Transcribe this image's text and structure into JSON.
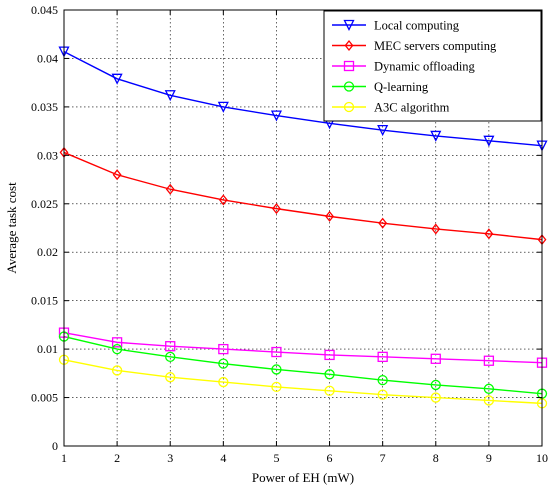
{
  "chart_data": {
    "type": "line",
    "title": "",
    "xlabel": "Power of EH (mW)",
    "ylabel": "Average task cost",
    "xlim": [
      1,
      10
    ],
    "ylim": [
      0,
      0.045
    ],
    "x": [
      1,
      2,
      3,
      4,
      5,
      6,
      7,
      8,
      9,
      10
    ],
    "x_ticks": [
      "1",
      "2",
      "3",
      "4",
      "5",
      "6",
      "7",
      "8",
      "9",
      "10"
    ],
    "y_tick_values": [
      0,
      0.005,
      0.01,
      0.015,
      0.02,
      0.025,
      0.03,
      0.035,
      0.04,
      0.045
    ],
    "y_ticks": [
      "0",
      "0.005",
      "0.01",
      "0.015",
      "0.02",
      "0.025",
      "0.03",
      "0.035",
      "0.04",
      "0.045"
    ],
    "grid": true,
    "legend_position": "top-right",
    "series": [
      {
        "name": "Local computing",
        "color": "#0000ff",
        "marker": "triangle-down",
        "values": [
          0.0407,
          0.0379,
          0.0362,
          0.035,
          0.0341,
          0.0333,
          0.0326,
          0.032,
          0.0315,
          0.031
        ]
      },
      {
        "name": "MEC servers computing",
        "color": "#ff0000",
        "marker": "diamond",
        "values": [
          0.0303,
          0.028,
          0.0265,
          0.0254,
          0.0245,
          0.0237,
          0.023,
          0.0224,
          0.0219,
          0.0213
        ]
      },
      {
        "name": "Dynamic offloading",
        "color": "#ff00ff",
        "marker": "square",
        "values": [
          0.0117,
          0.0107,
          0.0103,
          0.01,
          0.0097,
          0.0094,
          0.0092,
          0.009,
          0.0088,
          0.0086
        ]
      },
      {
        "name": "Q-learning",
        "color": "#00ff00",
        "marker": "circle",
        "values": [
          0.0113,
          0.01,
          0.0092,
          0.0085,
          0.0079,
          0.0074,
          0.0068,
          0.0063,
          0.0059,
          0.0054
        ]
      },
      {
        "name": "A3C algorithm",
        "color": "#ffff00",
        "marker": "circle",
        "values": [
          0.0089,
          0.0078,
          0.0071,
          0.0066,
          0.0061,
          0.0057,
          0.0053,
          0.005,
          0.0047,
          0.0044
        ]
      }
    ]
  }
}
